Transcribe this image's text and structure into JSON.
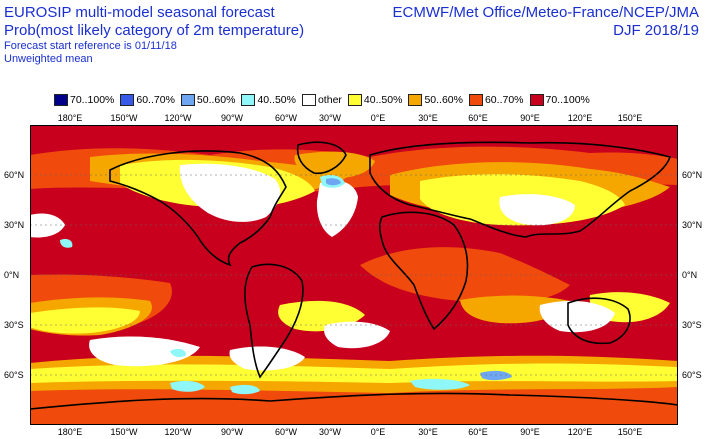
{
  "header": {
    "left_lines": [
      "EUROSIP multi-model seasonal forecast",
      "Prob(most likely category of 2m temperature)",
      "Forecast start reference is 01/11/18",
      "Unweighted mean"
    ],
    "right_lines": [
      "ECMWF/Met Office/Meteo-France/NCEP/JMA",
      "DJF 2018/19"
    ]
  },
  "legend": [
    {
      "label": "70..100%",
      "color": "#00008b"
    },
    {
      "label": "60..70%",
      "color": "#3858e8"
    },
    {
      "label": "50..60%",
      "color": "#6fa6f2"
    },
    {
      "label": "40..50%",
      "color": "#8ff7f8"
    },
    {
      "label": "other",
      "color": "#ffffff"
    },
    {
      "label": "40..50%",
      "color": "#ffff33"
    },
    {
      "label": "50..60%",
      "color": "#f5a700"
    },
    {
      "label": "60..70%",
      "color": "#f04a0c"
    },
    {
      "label": "70..100%",
      "color": "#c8001e"
    }
  ],
  "map": {
    "lon_labels": [
      "180°E",
      "150°W",
      "120°W",
      "90°W",
      "60°W",
      "30°W",
      "0°E",
      "30°E",
      "60°E",
      "90°E",
      "120°E",
      "150°E"
    ],
    "lat_labels": [
      "60°N",
      "30°N",
      "0°N",
      "30°S",
      "60°S"
    ]
  }
}
